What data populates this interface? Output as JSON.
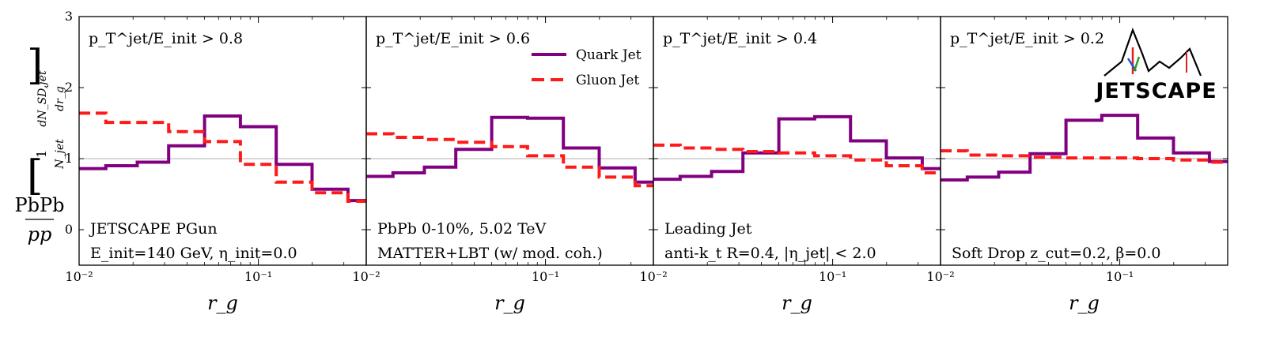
{
  "chart_data": {
    "type": "line",
    "layout": "1x4 panels sharing y axis",
    "ylabel_num": "PbPb",
    "ylabel_den": "pp",
    "ylabel_inner_num": "1",
    "ylabel_inner_den": "N_jet",
    "ylabel_inner_deriv_num": "dN_SD,jet",
    "ylabel_inner_deriv_den": "dr_g",
    "xlabel": "r_g",
    "xscale": "log",
    "xlim": [
      0.01,
      0.4
    ],
    "ylim": [
      -0.5,
      3
    ],
    "yticks": [
      "0",
      "1",
      "2",
      "3"
    ],
    "xtick_labels": [
      "10⁻²",
      "10⁻¹"
    ],
    "reference_line": 1,
    "legend": {
      "location": "top-center",
      "entries": [
        "Quark Jet",
        "Gluon Jet"
      ]
    },
    "bin_edges": [
      0.01,
      0.0141,
      0.0211,
      0.0316,
      0.0501,
      0.0794,
      0.1259,
      0.1995,
      0.3162,
      0.4
    ],
    "panels": [
      {
        "cut": "p_T^jet/E_init > 0.8",
        "cut_label": "p",
        "cut_value": "> 0.8",
        "note_lines": [
          "JETSCAPE PGun",
          "E_init=140 GeV, η_init=0.0"
        ],
        "series": [
          {
            "name": "Quark Jet",
            "values": [
              0.86,
              0.9,
              0.95,
              1.18,
              1.6,
              1.45,
              0.92,
              0.57,
              0.41
            ]
          },
          {
            "name": "Gluon Jet",
            "values": [
              1.64,
              1.51,
              1.51,
              1.38,
              1.24,
              0.92,
              0.67,
              0.52,
              0.4
            ]
          }
        ]
      },
      {
        "cut": "p_T^jet/E_init > 0.6",
        "cut_label": "p",
        "cut_value": "> 0.6",
        "note_lines": [
          "PbPb 0-10%, 5.02 TeV",
          "MATTER+LBT (w/ mod. coh.)"
        ],
        "series": [
          {
            "name": "Quark Jet",
            "values": [
              0.75,
              0.8,
              0.88,
              1.13,
              1.58,
              1.57,
              1.15,
              0.87,
              0.67
            ]
          },
          {
            "name": "Gluon Jet",
            "values": [
              1.35,
              1.3,
              1.27,
              1.23,
              1.17,
              1.04,
              0.88,
              0.74,
              0.62
            ]
          }
        ]
      },
      {
        "cut": "p_T^jet/E_init > 0.4",
        "cut_label": "p",
        "cut_value": "> 0.4",
        "note_lines": [
          "Leading Jet",
          "anti-k_t R=0.4, |η_jet| < 2.0"
        ],
        "series": [
          {
            "name": "Quark Jet",
            "values": [
              0.71,
              0.75,
              0.82,
              1.08,
              1.56,
              1.59,
              1.25,
              1.01,
              0.86
            ]
          },
          {
            "name": "Gluon Jet",
            "values": [
              1.19,
              1.15,
              1.13,
              1.1,
              1.08,
              1.04,
              0.98,
              0.9,
              0.8
            ]
          }
        ]
      },
      {
        "cut": "p_T^jet/E_init > 0.2",
        "cut_label": "p",
        "cut_value": "> 0.2",
        "note_lines": [
          "Soft Drop z_cut=0.2, β=0.0"
        ],
        "series": [
          {
            "name": "Quark Jet",
            "values": [
              0.7,
              0.74,
              0.81,
              1.07,
              1.54,
              1.61,
              1.29,
              1.08,
              0.96
            ]
          },
          {
            "name": "Gluon Jet",
            "values": [
              1.11,
              1.05,
              1.04,
              1.02,
              1.01,
              1.01,
              1.0,
              0.98,
              0.95
            ]
          }
        ]
      }
    ]
  },
  "logo": {
    "text": "JETSCAPE"
  }
}
